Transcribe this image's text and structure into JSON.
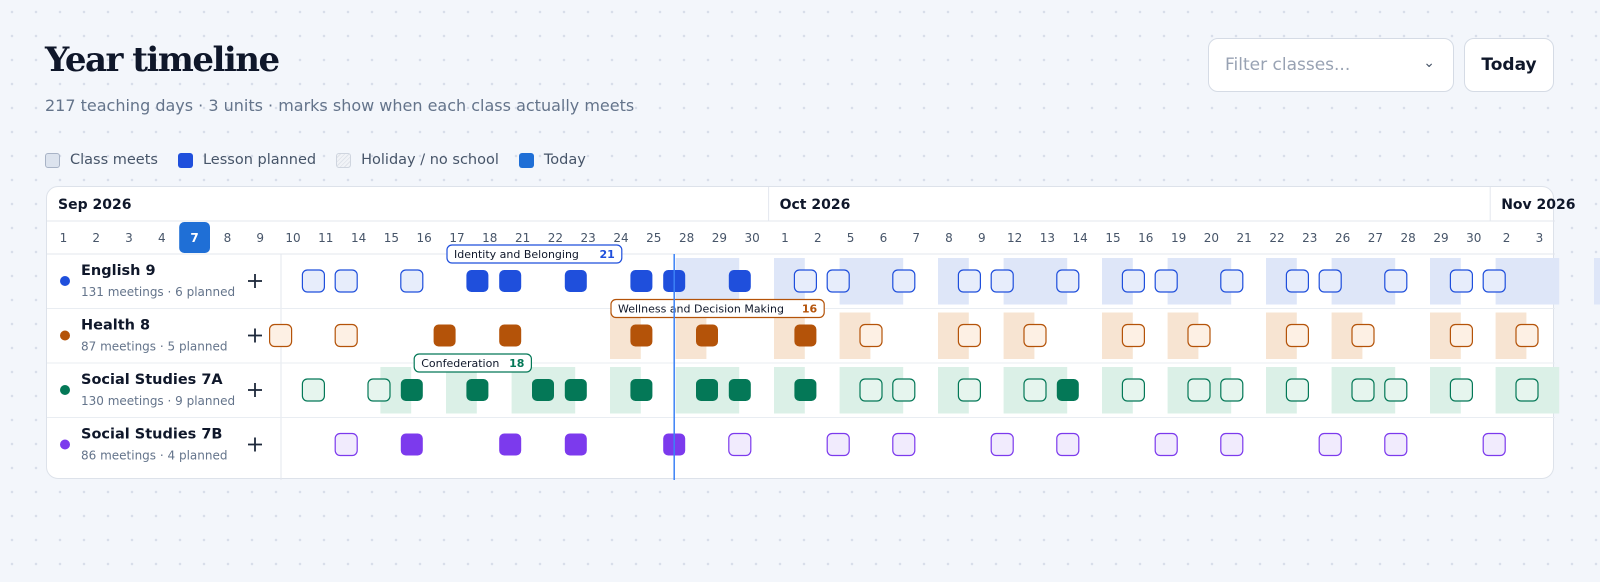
{
  "header": {
    "title": "Year timeline",
    "subtitle": "217 teaching days · 3 units · marks show when each class actually meets"
  },
  "controls": {
    "filter_placeholder": "Filter classes...",
    "today_label": "Today"
  },
  "legend": [
    {
      "label": "Class meets",
      "swatch": "meets"
    },
    {
      "label": "Lesson planned",
      "swatch": "planned"
    },
    {
      "label": "Holiday / no school",
      "swatch": "holiday"
    },
    {
      "label": "Today",
      "swatch": "today"
    }
  ],
  "months": [
    {
      "label": "Sep 2026",
      "start": 0
    },
    {
      "label": "Oct 2026",
      "start": 22
    },
    {
      "label": "Nov 2026",
      "start": 44
    }
  ],
  "days": [
    "1",
    "2",
    "3",
    "4",
    "7",
    "8",
    "9",
    "10",
    "11",
    "14",
    "15",
    "16",
    "17",
    "18",
    "21",
    "22",
    "23",
    "24",
    "25",
    "28",
    "29",
    "30",
    "1",
    "2",
    "5",
    "6",
    "7",
    "8",
    "9",
    "12",
    "13",
    "14",
    "15",
    "16",
    "19",
    "20",
    "21",
    "22",
    "23",
    "26",
    "27",
    "28",
    "29",
    "30",
    "2",
    "3"
  ],
  "today_index": 4,
  "today_line_index": 11,
  "classes": [
    {
      "name": "English 9",
      "meta": "131 meetings · 6 planned",
      "color": "#1f4fdc",
      "band": "#dee6f8",
      "fill": "#e7edfb",
      "bands": [
        [
          12,
          13
        ],
        [
          15,
          15
        ],
        [
          17,
          18
        ],
        [
          20,
          20
        ],
        [
          22,
          23
        ],
        [
          25,
          25
        ],
        [
          27,
          28
        ],
        [
          30,
          30
        ],
        [
          32,
          33
        ],
        [
          35,
          35
        ],
        [
          37,
          38
        ],
        [
          40,
          40
        ],
        [
          42,
          43
        ],
        [
          45,
          45
        ]
      ],
      "marks": [
        {
          "i": 0,
          "s": "m"
        },
        {
          "i": 1,
          "s": "m"
        },
        {
          "i": 3,
          "s": "m"
        },
        {
          "i": 5,
          "s": "p"
        },
        {
          "i": 6,
          "s": "p"
        },
        {
          "i": 8,
          "s": "p"
        },
        {
          "i": 10,
          "s": "p"
        },
        {
          "i": 11,
          "s": "p"
        },
        {
          "i": 13,
          "s": "p"
        },
        {
          "i": 15,
          "s": "m"
        },
        {
          "i": 16,
          "s": "m"
        },
        {
          "i": 18,
          "s": "m"
        },
        {
          "i": 20,
          "s": "m"
        },
        {
          "i": 21,
          "s": "m"
        },
        {
          "i": 23,
          "s": "m"
        },
        {
          "i": 25,
          "s": "m"
        },
        {
          "i": 26,
          "s": "m"
        },
        {
          "i": 28,
          "s": "m"
        },
        {
          "i": 30,
          "s": "m"
        },
        {
          "i": 31,
          "s": "m"
        },
        {
          "i": 33,
          "s": "m"
        },
        {
          "i": 35,
          "s": "m"
        },
        {
          "i": 36,
          "s": "m"
        },
        {
          "i": 38,
          "s": "m"
        }
      ],
      "unit": {
        "label": "Identity and Belonging",
        "count": "21",
        "start": 5
      }
    },
    {
      "name": "Health 8",
      "meta": "87 meetings · 5 planned",
      "color": "#b45309",
      "band": "#f7e4d2",
      "fill": "#fdf0e4",
      "bands": [
        [
          10,
          10
        ],
        [
          12,
          12
        ],
        [
          15,
          15
        ],
        [
          17,
          17
        ],
        [
          20,
          20
        ],
        [
          22,
          22
        ],
        [
          25,
          25
        ],
        [
          27,
          27
        ],
        [
          30,
          30
        ],
        [
          32,
          32
        ],
        [
          35,
          35
        ],
        [
          37,
          37
        ]
      ],
      "marks": [
        {
          "i": -1,
          "s": "m"
        },
        {
          "i": 1,
          "s": "m"
        },
        {
          "i": 4,
          "s": "p"
        },
        {
          "i": 6,
          "s": "p"
        },
        {
          "i": 10,
          "s": "p"
        },
        {
          "i": 12,
          "s": "p"
        },
        {
          "i": 15,
          "s": "p"
        },
        {
          "i": 17,
          "s": "m"
        },
        {
          "i": 20,
          "s": "m"
        },
        {
          "i": 22,
          "s": "m"
        },
        {
          "i": 25,
          "s": "m"
        },
        {
          "i": 27,
          "s": "m"
        },
        {
          "i": 30,
          "s": "m"
        },
        {
          "i": 32,
          "s": "m"
        },
        {
          "i": 35,
          "s": "m"
        },
        {
          "i": 37,
          "s": "m"
        }
      ],
      "unit": {
        "label": "Wellness and Decision Making",
        "count": "16",
        "start": 10
      }
    },
    {
      "name": "Social Studies 7A",
      "meta": "130 meetings · 9 planned",
      "color": "#047857",
      "band": "#dbf0e7",
      "fill": "#e6f5ee",
      "bands": [
        [
          3,
          3
        ],
        [
          5,
          5
        ],
        [
          7,
          8
        ],
        [
          10,
          10
        ],
        [
          12,
          13
        ],
        [
          15,
          15
        ],
        [
          17,
          18
        ],
        [
          20,
          20
        ],
        [
          22,
          23
        ],
        [
          25,
          25
        ],
        [
          27,
          28
        ],
        [
          30,
          30
        ],
        [
          32,
          33
        ],
        [
          35,
          35
        ],
        [
          37,
          38
        ]
      ],
      "marks": [
        {
          "i": 0,
          "s": "m"
        },
        {
          "i": 2,
          "s": "m"
        },
        {
          "i": 3,
          "s": "p"
        },
        {
          "i": 5,
          "s": "p"
        },
        {
          "i": 7,
          "s": "p"
        },
        {
          "i": 8,
          "s": "p"
        },
        {
          "i": 10,
          "s": "p"
        },
        {
          "i": 12,
          "s": "p"
        },
        {
          "i": 13,
          "s": "p"
        },
        {
          "i": 15,
          "s": "p"
        },
        {
          "i": 17,
          "s": "m"
        },
        {
          "i": 18,
          "s": "m"
        },
        {
          "i": 20,
          "s": "m"
        },
        {
          "i": 22,
          "s": "m"
        },
        {
          "i": 23,
          "s": "p"
        },
        {
          "i": 25,
          "s": "m"
        },
        {
          "i": 27,
          "s": "m"
        },
        {
          "i": 28,
          "s": "m"
        },
        {
          "i": 30,
          "s": "m"
        },
        {
          "i": 32,
          "s": "m"
        },
        {
          "i": 33,
          "s": "m"
        },
        {
          "i": 35,
          "s": "m"
        },
        {
          "i": 37,
          "s": "m"
        }
      ],
      "unit": {
        "label": "Confederation",
        "count": "18",
        "start": 4
      }
    },
    {
      "name": "Social Studies 7B",
      "meta": "86 meetings · 4 planned",
      "color": "#7c3aed",
      "band": "#ece4fb",
      "fill": "#f1ebfd",
      "bands": [],
      "marks": [
        {
          "i": 1,
          "s": "m"
        },
        {
          "i": 3,
          "s": "p"
        },
        {
          "i": 6,
          "s": "p"
        },
        {
          "i": 8,
          "s": "p"
        },
        {
          "i": 11,
          "s": "p"
        },
        {
          "i": 13,
          "s": "m"
        },
        {
          "i": 16,
          "s": "m"
        },
        {
          "i": 18,
          "s": "m"
        },
        {
          "i": 21,
          "s": "m"
        },
        {
          "i": 23,
          "s": "m"
        },
        {
          "i": 26,
          "s": "m"
        },
        {
          "i": 28,
          "s": "m"
        },
        {
          "i": 31,
          "s": "m"
        },
        {
          "i": 33,
          "s": "m"
        },
        {
          "i": 36,
          "s": "m"
        }
      ],
      "unit": null
    }
  ]
}
